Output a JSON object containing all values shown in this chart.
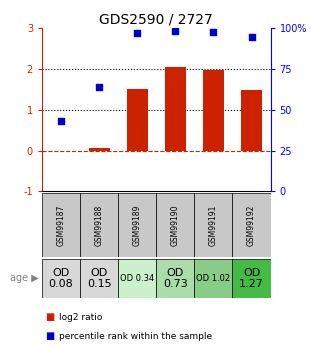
{
  "title": "GDS2590 / 2727",
  "samples": [
    "GSM99187",
    "GSM99188",
    "GSM99189",
    "GSM99190",
    "GSM99191",
    "GSM99192"
  ],
  "log2_ratio": [
    0.0,
    0.07,
    1.5,
    2.05,
    1.97,
    1.48
  ],
  "percentile_vals": [
    43,
    64,
    97,
    98,
    97.5,
    94
  ],
  "bar_color": "#cc2200",
  "dot_color": "#0000cc",
  "ylim_left": [
    -1,
    3
  ],
  "ylim_right": [
    0,
    100
  ],
  "yticks_left": [
    -1,
    0,
    1,
    2,
    3
  ],
  "yticks_right": [
    0,
    25,
    50,
    75,
    100
  ],
  "ytick_right_labels": [
    "0",
    "25",
    "50",
    "75",
    "100%"
  ],
  "hlines_dotted": [
    1.0,
    2.0
  ],
  "age_texts": [
    "OD\n0.08",
    "OD\n0.15",
    "OD 0.34",
    "OD\n0.73",
    "OD 1.02",
    "OD\n1.27"
  ],
  "age_fontsizes": [
    8,
    8,
    6,
    8,
    6,
    8
  ],
  "age_colors": [
    "#d8d8d8",
    "#d8d8d8",
    "#ccf0cc",
    "#aaddaa",
    "#88cc88",
    "#44bb44"
  ],
  "gsm_color": "#c8c8c8",
  "legend_red_label": "log2 ratio",
  "legend_blue_label": "percentile rank within the sample",
  "background_color": "#ffffff",
  "title_fontsize": 10,
  "tick_fontsize": 7,
  "sample_fontsize": 5.5
}
